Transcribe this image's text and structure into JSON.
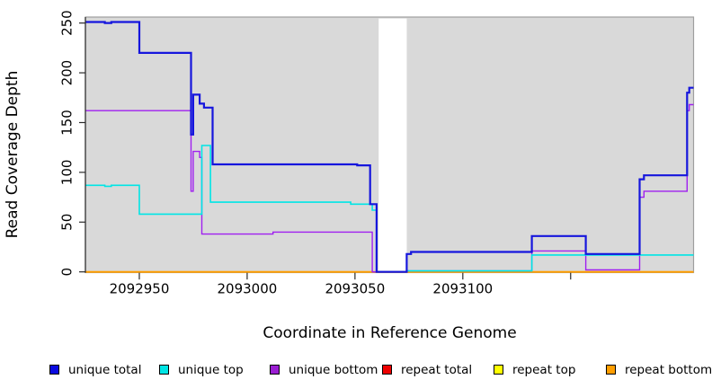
{
  "figure": {
    "background": "#ffffff"
  },
  "chart_data": {
    "type": "line",
    "title": "",
    "xlabel": "Coordinate in Reference Genome",
    "ylabel": "Read Coverage Depth",
    "x_range": [
      2092925,
      2093207
    ],
    "y_range": [
      0,
      256
    ],
    "grid": false,
    "legend_position": "bottom",
    "panel_bg": "#d9d9d9",
    "panel_border": "#9e9e9e",
    "axis_color": "#2a2a2a",
    "tick_label_color": "#000000",
    "no_data_gap": {
      "x_start": 2093061,
      "x_end": 2093074,
      "color": "#ffffff"
    },
    "x_ticks": [
      {
        "value": 2092950,
        "label": "2092950"
      },
      {
        "value": 2093000,
        "label": "2093000"
      },
      {
        "value": 2093050,
        "label": "2093050"
      },
      {
        "value": 2093100,
        "label": "2093100"
      },
      {
        "value": 2093150,
        "label": ""
      }
    ],
    "y_ticks": [
      {
        "value": 0,
        "label": "0"
      },
      {
        "value": 50,
        "label": "50"
      },
      {
        "value": 100,
        "label": "100"
      },
      {
        "value": 150,
        "label": "150"
      },
      {
        "value": 200,
        "label": "200"
      },
      {
        "value": 250,
        "label": "250"
      }
    ],
    "series": [
      {
        "name": "repeat total",
        "color": "#ee0000",
        "width": 1.4,
        "points": [
          [
            2092925,
            0
          ]
        ]
      },
      {
        "name": "repeat top",
        "color": "#ffff00",
        "width": 1.4,
        "points": [
          [
            2092925,
            0
          ]
        ]
      },
      {
        "name": "repeat bottom",
        "color": "#ff9e00",
        "width": 2,
        "points": [
          [
            2092925,
            0
          ]
        ]
      },
      {
        "name": "unique bottom",
        "color": "#a020f0",
        "width": 1.4,
        "points": [
          [
            2092925,
            162
          ],
          [
            2092974,
            81
          ],
          [
            2092975,
            121
          ],
          [
            2092978,
            115
          ],
          [
            2092979,
            38
          ],
          [
            2093012,
            40
          ],
          [
            2093058,
            0
          ],
          [
            2093074,
            1
          ],
          [
            2093132,
            21
          ],
          [
            2093157,
            2
          ],
          [
            2093182,
            75
          ],
          [
            2093184,
            81
          ],
          [
            2093204,
            162
          ],
          [
            2093205,
            168
          ]
        ]
      },
      {
        "name": "unique top",
        "color": "#00e5e5",
        "width": 1.6,
        "points": [
          [
            2092925,
            87
          ],
          [
            2092934,
            86
          ],
          [
            2092937,
            87
          ],
          [
            2092950,
            58
          ],
          [
            2092979,
            127
          ],
          [
            2092983,
            70
          ],
          [
            2093048,
            68
          ],
          [
            2093058,
            62
          ],
          [
            2093060,
            0
          ],
          [
            2093074,
            1
          ],
          [
            2093132,
            17
          ]
        ]
      },
      {
        "name": "unique total",
        "color": "#1616dd",
        "width": 2.2,
        "points": [
          [
            2092925,
            251
          ],
          [
            2092934,
            250
          ],
          [
            2092937,
            251
          ],
          [
            2092950,
            220
          ],
          [
            2092974,
            138
          ],
          [
            2092975,
            178
          ],
          [
            2092978,
            169
          ],
          [
            2092980,
            165
          ],
          [
            2092984,
            108
          ],
          [
            2093051,
            107
          ],
          [
            2093057,
            68
          ],
          [
            2093060,
            0
          ],
          [
            2093074,
            18
          ],
          [
            2093076,
            20
          ],
          [
            2093132,
            36
          ],
          [
            2093157,
            18
          ],
          [
            2093182,
            93
          ],
          [
            2093184,
            97
          ],
          [
            2093204,
            180
          ],
          [
            2093205,
            185
          ]
        ]
      }
    ],
    "legend": [
      {
        "label": "unique total",
        "color": "#0a0ae0"
      },
      {
        "label": "unique top",
        "color": "#00e5e5"
      },
      {
        "label": "unique bottom",
        "color": "#9a1ed2"
      },
      {
        "label": "repeat total",
        "color": "#ee0000"
      },
      {
        "label": "repeat top",
        "color": "#ffff00"
      },
      {
        "label": "repeat bottom",
        "color": "#ff9e00"
      }
    ]
  }
}
